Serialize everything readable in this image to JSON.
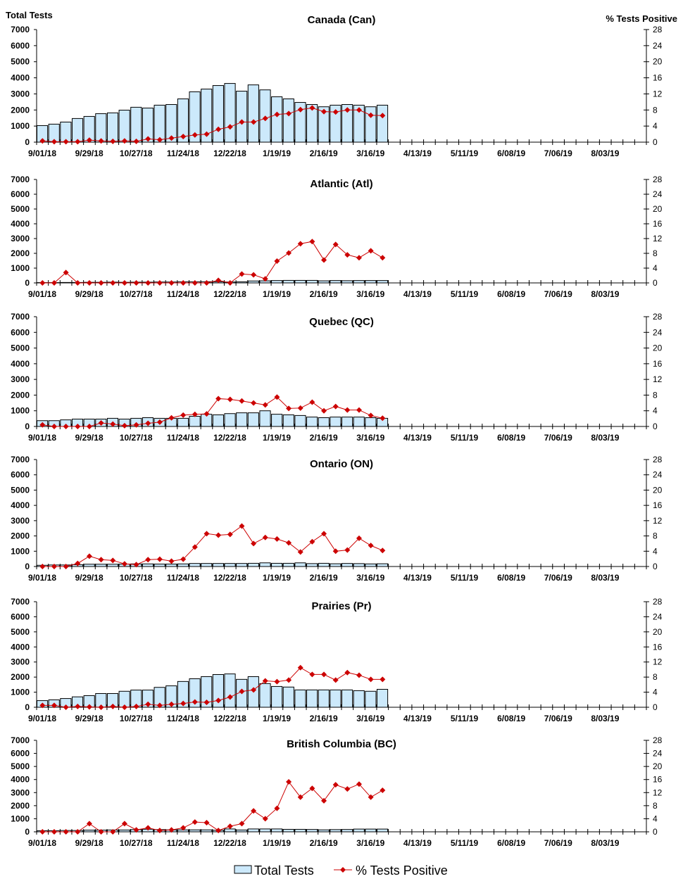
{
  "chart_data": [
    {
      "type": "bar+line",
      "title": "Canada (Can)",
      "ylabel": "Total Tests",
      "y2label": "% Tests Positive",
      "total_tests": [
        1030,
        1120,
        1250,
        1470,
        1600,
        1770,
        1820,
        1990,
        2170,
        2120,
        2300,
        2340,
        2690,
        3130,
        3300,
        3520,
        3650,
        3170,
        3560,
        3250,
        2820,
        2690,
        2470,
        2340,
        2200,
        2300,
        2340,
        2300,
        2200,
        2300
      ],
      "pct_positive": [
        0.3,
        0.1,
        0.1,
        0.1,
        0.5,
        0.3,
        0.2,
        0.3,
        0.2,
        0.8,
        0.6,
        1.0,
        1.4,
        1.8,
        2.0,
        3.2,
        3.8,
        5.0,
        5.0,
        5.9,
        6.9,
        7.1,
        8.1,
        8.5,
        7.6,
        7.5,
        8.0,
        8.0,
        6.7,
        6.6
      ]
    },
    {
      "type": "bar+line",
      "title": "Atlantic (Atl)",
      "total_tests": [
        20,
        20,
        30,
        30,
        40,
        40,
        50,
        40,
        50,
        50,
        60,
        60,
        70,
        70,
        80,
        80,
        60,
        70,
        130,
        140,
        160,
        170,
        170,
        170,
        140,
        160,
        150,
        160,
        160,
        160
      ],
      "pct_positive": [
        0,
        0,
        2.8,
        0,
        0,
        0,
        0,
        0,
        0,
        0,
        0,
        0,
        0,
        0,
        0,
        0.7,
        0,
        2.4,
        2.2,
        1.1,
        5.9,
        8.1,
        10.6,
        11.2,
        6.2,
        10.4,
        7.6,
        6.8,
        8.7,
        6.8
      ]
    },
    {
      "type": "bar+line",
      "title": "Quebec (QC)",
      "total_tests": [
        370,
        370,
        420,
        470,
        470,
        470,
        520,
        470,
        520,
        560,
        520,
        520,
        520,
        650,
        780,
        740,
        820,
        870,
        870,
        1000,
        780,
        740,
        700,
        600,
        560,
        600,
        600,
        600,
        560,
        520
      ],
      "pct_positive": [
        0.4,
        0,
        0,
        0,
        0,
        0.9,
        0.6,
        0.2,
        0.4,
        0.8,
        1.1,
        2.2,
        2.9,
        3.1,
        3.2,
        7.1,
        6.9,
        6.5,
        6.0,
        5.5,
        7.5,
        4.6,
        4.7,
        6.2,
        4.0,
        5.1,
        4.2,
        4.2,
        2.8,
        2.1
      ]
    },
    {
      "type": "bar+line",
      "title": "Ontario (ON)",
      "total_tests": [
        80,
        100,
        100,
        120,
        150,
        150,
        150,
        160,
        170,
        170,
        160,
        160,
        170,
        200,
        200,
        200,
        200,
        200,
        210,
        240,
        210,
        210,
        240,
        190,
        210,
        180,
        200,
        190,
        170,
        180
      ],
      "pct_positive": [
        0,
        0,
        0,
        0.8,
        2.7,
        1.8,
        1.6,
        0.7,
        0.5,
        1.8,
        1.9,
        1.4,
        1.9,
        5.1,
        8.6,
        8.2,
        8.4,
        10.6,
        6.0,
        7.6,
        7.2,
        6.2,
        3.8,
        6.5,
        8.6,
        4.0,
        4.3,
        7.4,
        5.5,
        4.2
      ]
    },
    {
      "type": "bar+line",
      "title": "Prairies (Pr)",
      "total_tests": [
        440,
        490,
        580,
        690,
        770,
        910,
        910,
        1060,
        1140,
        1140,
        1320,
        1420,
        1710,
        1890,
        2030,
        2170,
        2210,
        1850,
        2030,
        1570,
        1380,
        1340,
        1150,
        1150,
        1150,
        1150,
        1150,
        1100,
        1060,
        1190
      ],
      "pct_positive": [
        0.5,
        0.5,
        0,
        0.2,
        0.1,
        0,
        0.2,
        0,
        0.2,
        0.8,
        0.5,
        0.8,
        1.0,
        1.4,
        1.3,
        1.8,
        2.7,
        4.2,
        4.6,
        7.0,
        6.8,
        7.2,
        10.5,
        8.7,
        8.7,
        7.2,
        9.2,
        8.5,
        7.4,
        7.4
      ]
    },
    {
      "type": "bar+line",
      "title": "British Columbia (BC)",
      "total_tests": [
        80,
        80,
        100,
        100,
        130,
        130,
        140,
        140,
        170,
        200,
        170,
        150,
        150,
        150,
        150,
        120,
        220,
        140,
        220,
        220,
        220,
        190,
        190,
        180,
        150,
        170,
        180,
        210,
        210,
        210
      ],
      "pct_positive": [
        0,
        0,
        0,
        0,
        2.5,
        0,
        0,
        2.5,
        0.6,
        1.2,
        0.4,
        0.6,
        1.2,
        3.0,
        2.8,
        0.4,
        1.7,
        2.5,
        6.4,
        4.0,
        7.2,
        15.3,
        10.6,
        13.3,
        9.5,
        14.4,
        13.1,
        14.6,
        10.6,
        12.7
      ]
    }
  ],
  "shared": {
    "x_tick_labels": [
      "9/01/18",
      "9/29/18",
      "10/27/18",
      "11/24/18",
      "12/22/18",
      "1/19/19",
      "2/16/19",
      "3/16/19",
      "4/13/19",
      "5/11/19",
      "6/08/19",
      "7/06/19",
      "8/03/19"
    ],
    "x_weeks": 52,
    "ylim": [
      0,
      7000
    ],
    "y_ticks": [
      0,
      1000,
      2000,
      3000,
      4000,
      5000,
      6000,
      7000
    ],
    "y2lim": [
      0,
      28
    ],
    "y2_ticks": [
      0,
      4,
      8,
      12,
      16,
      20,
      24,
      28
    ],
    "legend": [
      "Total Tests",
      "% Tests Positive"
    ],
    "legend_placement": "bottom-center",
    "colors": {
      "bar_fill": "#cce9fb",
      "bar_stroke": "#000000",
      "line": "#cc0000"
    }
  }
}
